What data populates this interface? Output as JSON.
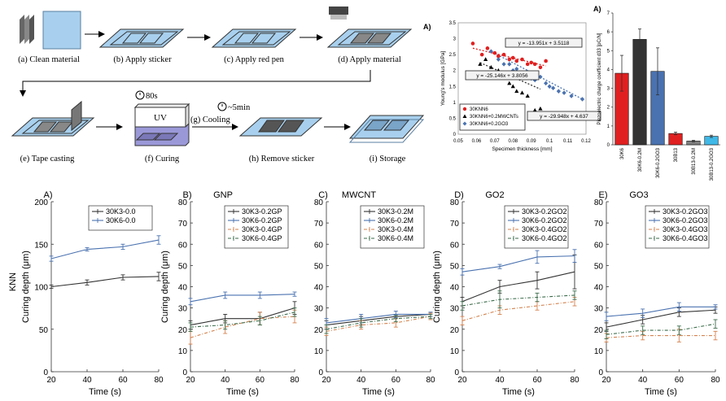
{
  "process": {
    "steps": [
      {
        "label": "(a) Clean material"
      },
      {
        "label": "(b) Apply sticker"
      },
      {
        "label": "(c) Apply red pen"
      },
      {
        "label": "(d) Apply material"
      },
      {
        "label": "(e) Tape casting"
      },
      {
        "label": "(f) Curing"
      },
      {
        "label": "(h) Remove sticker"
      },
      {
        "label": "(i) Storage"
      }
    ],
    "uv_label": "UV",
    "time_uv": "80s",
    "time_cool": "~5min",
    "cooling_label": "(g) Cooling"
  },
  "colors": {
    "black": "#333333",
    "blue": "#4a72b0",
    "orange": "#d4824f",
    "green": "#3a6b4a",
    "red": "#e02020",
    "purple": "#808080",
    "cyan": "#3fb8e8"
  },
  "chart_data": [
    {
      "type": "scatter",
      "panel": "A)",
      "xlabel": "Specimen thickness [mm]",
      "ylabel": "Young's modulus [GPa]",
      "xlim": [
        0.05,
        0.12
      ],
      "ylim": [
        0,
        3.5
      ],
      "xticks": [
        "0.05",
        "0.06",
        "0.07",
        "0.08",
        "0.09",
        "0.1",
        "0.11",
        "0.12"
      ],
      "yticks": [
        "0",
        "0.5",
        "1",
        "1.5",
        "2",
        "2.5",
        "3",
        "3.5"
      ],
      "legend": [
        "30KNN6",
        "30KNN6+0.2MWCNTs",
        "30KNN6+0.2GO3"
      ],
      "equations": [
        "y = -13.951x + 3.5118",
        "y = -25.146x + 3.8056",
        "y = -29.948x + 4.637"
      ],
      "series": [
        {
          "name": "30KNN6",
          "color": "red",
          "marker": "circle",
          "fit": [
            -13.951,
            3.5118
          ],
          "x": [
            0.058,
            0.063,
            0.066,
            0.07,
            0.072,
            0.075,
            0.078,
            0.08,
            0.082,
            0.085,
            0.088,
            0.09,
            0.092,
            0.095,
            0.098
          ],
          "y": [
            2.85,
            2.5,
            2.7,
            2.55,
            2.45,
            2.5,
            2.35,
            2.4,
            2.3,
            2.35,
            2.2,
            2.25,
            2.2,
            2.1,
            2.3
          ]
        },
        {
          "name": "30KNN6+0.2MWCNTs",
          "color": "black",
          "marker": "triangle",
          "fit": [
            -25.146,
            3.8056
          ],
          "x": [
            0.062,
            0.065,
            0.068,
            0.072,
            0.075,
            0.078,
            0.08,
            0.082,
            0.085,
            0.088,
            0.092,
            0.095
          ],
          "y": [
            2.2,
            2.35,
            2.1,
            2.0,
            1.9,
            1.6,
            1.5,
            1.35,
            1.3,
            1.2,
            0.75,
            0.8
          ]
        },
        {
          "name": "30KNN6+0.2GO3",
          "color": "blue",
          "marker": "diamond",
          "fit": [
            -29.948,
            4.637
          ],
          "x": [
            0.068,
            0.072,
            0.075,
            0.078,
            0.08,
            0.082,
            0.085,
            0.088,
            0.09,
            0.092,
            0.095,
            0.098,
            0.1,
            0.102,
            0.105,
            0.108,
            0.112,
            0.118
          ],
          "y": [
            2.6,
            2.35,
            2.2,
            2.2,
            2.0,
            2.05,
            1.9,
            1.95,
            1.75,
            1.7,
            1.8,
            1.6,
            1.5,
            1.45,
            1.35,
            1.3,
            1.2,
            1.1
          ]
        }
      ]
    },
    {
      "type": "bar",
      "panel": "A)",
      "ylabel": "Piezoelectric charge coefficient d33 [pC/N]",
      "ylim": [
        0,
        7
      ],
      "yticks": [
        "0",
        "1",
        "2",
        "3",
        "4",
        "5",
        "6",
        "7"
      ],
      "categories": [
        "30K6",
        "30K6-0.2M",
        "30K6-0.2GO3",
        "30B13",
        "30B13-0.2M",
        "30B13-0.2GO3"
      ],
      "values": [
        3.8,
        5.6,
        3.9,
        0.6,
        0.2,
        0.45
      ],
      "errors": [
        0.95,
        0.55,
        1.25,
        0.07,
        0.04,
        0.06
      ],
      "colors": [
        "red",
        "black",
        "blue",
        "red",
        "purple",
        "cyan"
      ]
    },
    {
      "type": "line",
      "panel": "A)",
      "title": "",
      "xlabel": "Time (s)",
      "ylabel": "Curing depth (μm)",
      "side_label": "KNN",
      "x": [
        20,
        40,
        60,
        80
      ],
      "ylim": [
        0,
        200
      ],
      "yticks": [
        "0",
        "50",
        "100",
        "150",
        "200"
      ],
      "series": [
        {
          "name": "30K3-0.0",
          "color": "black",
          "dash": "",
          "values": [
            100,
            105,
            111,
            112
          ],
          "errors": [
            2,
            3,
            3,
            5
          ]
        },
        {
          "name": "30K6-0.0",
          "color": "blue",
          "dash": "",
          "values": [
            133,
            144,
            147,
            155
          ],
          "errors": [
            3,
            2,
            3,
            5
          ]
        }
      ]
    },
    {
      "type": "line",
      "panel": "B)",
      "title": "GNP",
      "xlabel": "Time (s)",
      "ylabel": "Curing depth (μm)",
      "x": [
        20,
        40,
        60,
        80
      ],
      "ylim": [
        0,
        80
      ],
      "yticks": [
        "0",
        "10",
        "20",
        "30",
        "40",
        "50",
        "60",
        "70",
        "80"
      ],
      "series": [
        {
          "name": "30K3-0.2GP",
          "color": "black",
          "dash": "",
          "values": [
            22,
            25,
            25,
            30
          ],
          "errors": [
            2,
            2,
            3,
            3
          ]
        },
        {
          "name": "30K6-0.2GP",
          "color": "blue",
          "dash": "",
          "values": [
            33,
            36,
            36,
            36.5
          ],
          "errors": [
            1.5,
            1.5,
            1.5,
            1
          ]
        },
        {
          "name": "30K3-0.4GP",
          "color": "orange",
          "dash": "4,2,1,2",
          "values": [
            16,
            21,
            25,
            26
          ],
          "errors": [
            3,
            3,
            3,
            3
          ]
        },
        {
          "name": "30K6-0.4GP",
          "color": "green",
          "dash": "4,2,1,2",
          "values": [
            21,
            22,
            24,
            28
          ],
          "errors": [
            2,
            2,
            2,
            2
          ]
        }
      ]
    },
    {
      "type": "line",
      "panel": "C)",
      "title": "MWCNT",
      "xlabel": "Time (s)",
      "ylabel": "",
      "x": [
        20,
        40,
        60,
        80
      ],
      "ylim": [
        0,
        80
      ],
      "yticks": [
        "0",
        "10",
        "20",
        "30",
        "40",
        "50",
        "60",
        "70",
        "80"
      ],
      "series": [
        {
          "name": "30K3-0.2M",
          "color": "black",
          "dash": "",
          "values": [
            22,
            24,
            26,
            27
          ],
          "errors": [
            2,
            2,
            1,
            1
          ]
        },
        {
          "name": "30K6-0.2M",
          "color": "blue",
          "dash": "",
          "values": [
            23,
            25,
            27,
            27
          ],
          "errors": [
            2,
            2,
            1.5,
            1
          ]
        },
        {
          "name": "30K3-0.4M",
          "color": "orange",
          "dash": "4,2,1,2",
          "values": [
            19,
            22,
            23,
            26
          ],
          "errors": [
            2,
            2,
            2,
            1.5
          ]
        },
        {
          "name": "30K6-0.4M",
          "color": "green",
          "dash": "4,2,1,2",
          "values": [
            20,
            23,
            25,
            26
          ],
          "errors": [
            2,
            2,
            1.5,
            1
          ]
        }
      ]
    },
    {
      "type": "line",
      "panel": "D)",
      "title": "GO2",
      "xlabel": "Time (s)",
      "ylabel": "Curing depth (μm)",
      "x": [
        20,
        40,
        60,
        80
      ],
      "ylim": [
        0,
        80
      ],
      "yticks": [
        "0",
        "10",
        "20",
        "30",
        "40",
        "50",
        "60",
        "70",
        "80"
      ],
      "series": [
        {
          "name": "30K3-0.2GO2",
          "color": "black",
          "dash": "",
          "values": [
            33,
            40,
            43,
            47
          ],
          "errors": [
            2,
            3,
            4,
            8
          ]
        },
        {
          "name": "30K6-0.2GO2",
          "color": "blue",
          "dash": "",
          "values": [
            47,
            49.5,
            54,
            54.5
          ],
          "errors": [
            1.5,
            1,
            3,
            3
          ]
        },
        {
          "name": "30K3-0.4GO2",
          "color": "orange",
          "dash": "4,2,1,2",
          "values": [
            24,
            29,
            31,
            33
          ],
          "errors": [
            2,
            2,
            2,
            2
          ]
        },
        {
          "name": "30K6-0.4GO2",
          "color": "green",
          "dash": "4,2,1,2",
          "values": [
            31,
            34,
            35,
            36
          ],
          "errors": [
            2,
            4,
            2,
            2
          ]
        }
      ]
    },
    {
      "type": "line",
      "panel": "E)",
      "title": "GO3",
      "xlabel": "Time (s)",
      "ylabel": "",
      "x": [
        20,
        40,
        60,
        80
      ],
      "ylim": [
        0,
        80
      ],
      "yticks": [
        "0",
        "10",
        "20",
        "30",
        "40",
        "50",
        "60",
        "70",
        "80"
      ],
      "series": [
        {
          "name": "30K3-0.2GO3",
          "color": "black",
          "dash": "",
          "values": [
            21,
            24.5,
            28,
            29
          ],
          "errors": [
            2,
            2,
            2,
            1.5
          ]
        },
        {
          "name": "30K6-0.2GO3",
          "color": "blue",
          "dash": "",
          "values": [
            26,
            27.5,
            30.5,
            30.5
          ],
          "errors": [
            2,
            2,
            2,
            1
          ]
        },
        {
          "name": "30K3-0.4GO3",
          "color": "orange",
          "dash": "4,2,1,2",
          "values": [
            16,
            17,
            17,
            17
          ],
          "errors": [
            2,
            2,
            3,
            2
          ]
        },
        {
          "name": "30K6-0.4GO3",
          "color": "green",
          "dash": "4,2,1,2",
          "values": [
            17.5,
            19.5,
            19.5,
            22.5
          ],
          "errors": [
            2,
            2,
            2,
            2
          ]
        }
      ]
    }
  ]
}
